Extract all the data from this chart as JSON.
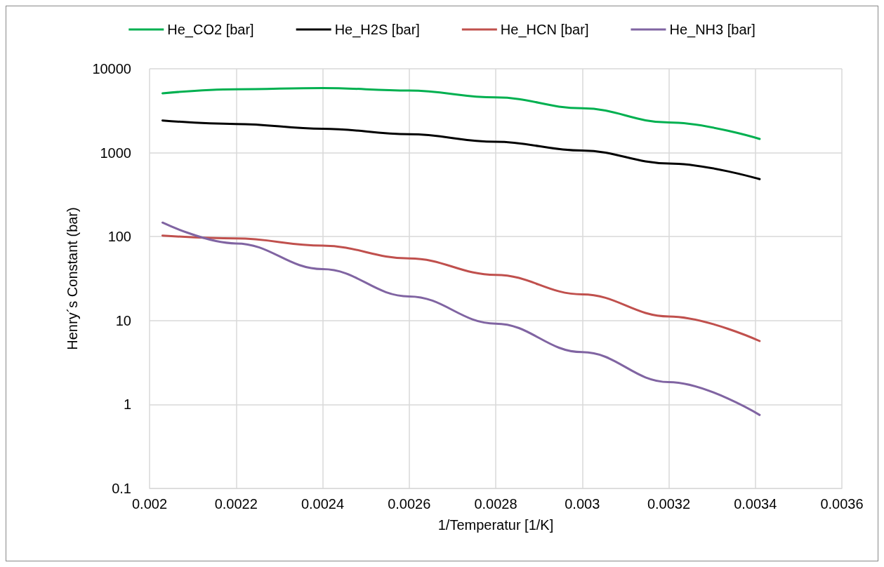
{
  "chart_data": {
    "type": "line",
    "xlabel": "1/Temperatur [1/K]",
    "ylabel": "Henry´s Constant (bar)",
    "x": [
      0.00203,
      0.0022,
      0.0024,
      0.0026,
      0.0028,
      0.003,
      0.0032,
      0.00341
    ],
    "series": [
      {
        "name": "He_CO2 [bar]",
        "color": "#00b050",
        "values": [
          5100,
          5700,
          5900,
          5500,
          4560,
          3380,
          2290,
          1460
        ]
      },
      {
        "name": "He_H2S [bar]",
        "color": "#000000",
        "values": [
          2420,
          2200,
          1930,
          1660,
          1350,
          1060,
          745,
          484
        ]
      },
      {
        "name": "He_HCN [bar]",
        "color": "#c0504d",
        "values": [
          103,
          95,
          78,
          55,
          35,
          20.5,
          11.2,
          5.7
        ]
      },
      {
        "name": "He_NH3 [bar]",
        "color": "#8064a2",
        "values": [
          147,
          83,
          41,
          19.4,
          9.2,
          4.2,
          1.85,
          0.75
        ]
      }
    ],
    "xlim": [
      0.002,
      0.0036
    ],
    "xticks": [
      0.002,
      0.0022,
      0.0024,
      0.0026,
      0.0028,
      0.003,
      0.0032,
      0.0034,
      0.0036
    ],
    "log": "y",
    "ylim": [
      0.1,
      10000
    ],
    "yticks": [
      0.1,
      1,
      10,
      100,
      1000,
      10000
    ],
    "grid": true,
    "legend": "top",
    "marker": "none",
    "line_style": "solid"
  }
}
